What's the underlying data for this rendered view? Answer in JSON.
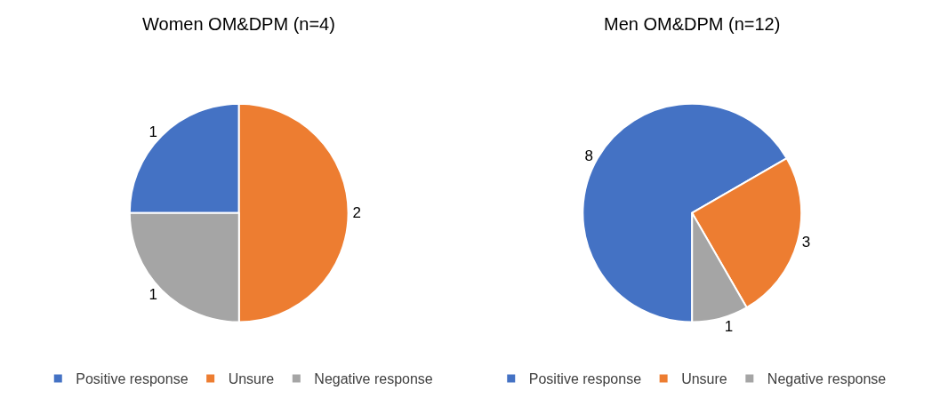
{
  "chart_data": [
    {
      "type": "pie",
      "title": "Women OM&DPM (n=4)",
      "categories": [
        "Positive response",
        "Unsure",
        "Negative response"
      ],
      "values": [
        1,
        2,
        1
      ],
      "colors": [
        "#4472c4",
        "#ed7d31",
        "#a5a5a5"
      ],
      "data_labels": true,
      "legend": "bottom"
    },
    {
      "type": "pie",
      "title": "Men OM&DPM (n=12)",
      "categories": [
        "Positive response",
        "Unsure",
        "Negative response"
      ],
      "values": [
        8,
        3,
        1
      ],
      "colors": [
        "#4472c4",
        "#ed7d31",
        "#a5a5a5"
      ],
      "data_labels": true,
      "legend": "bottom"
    }
  ]
}
